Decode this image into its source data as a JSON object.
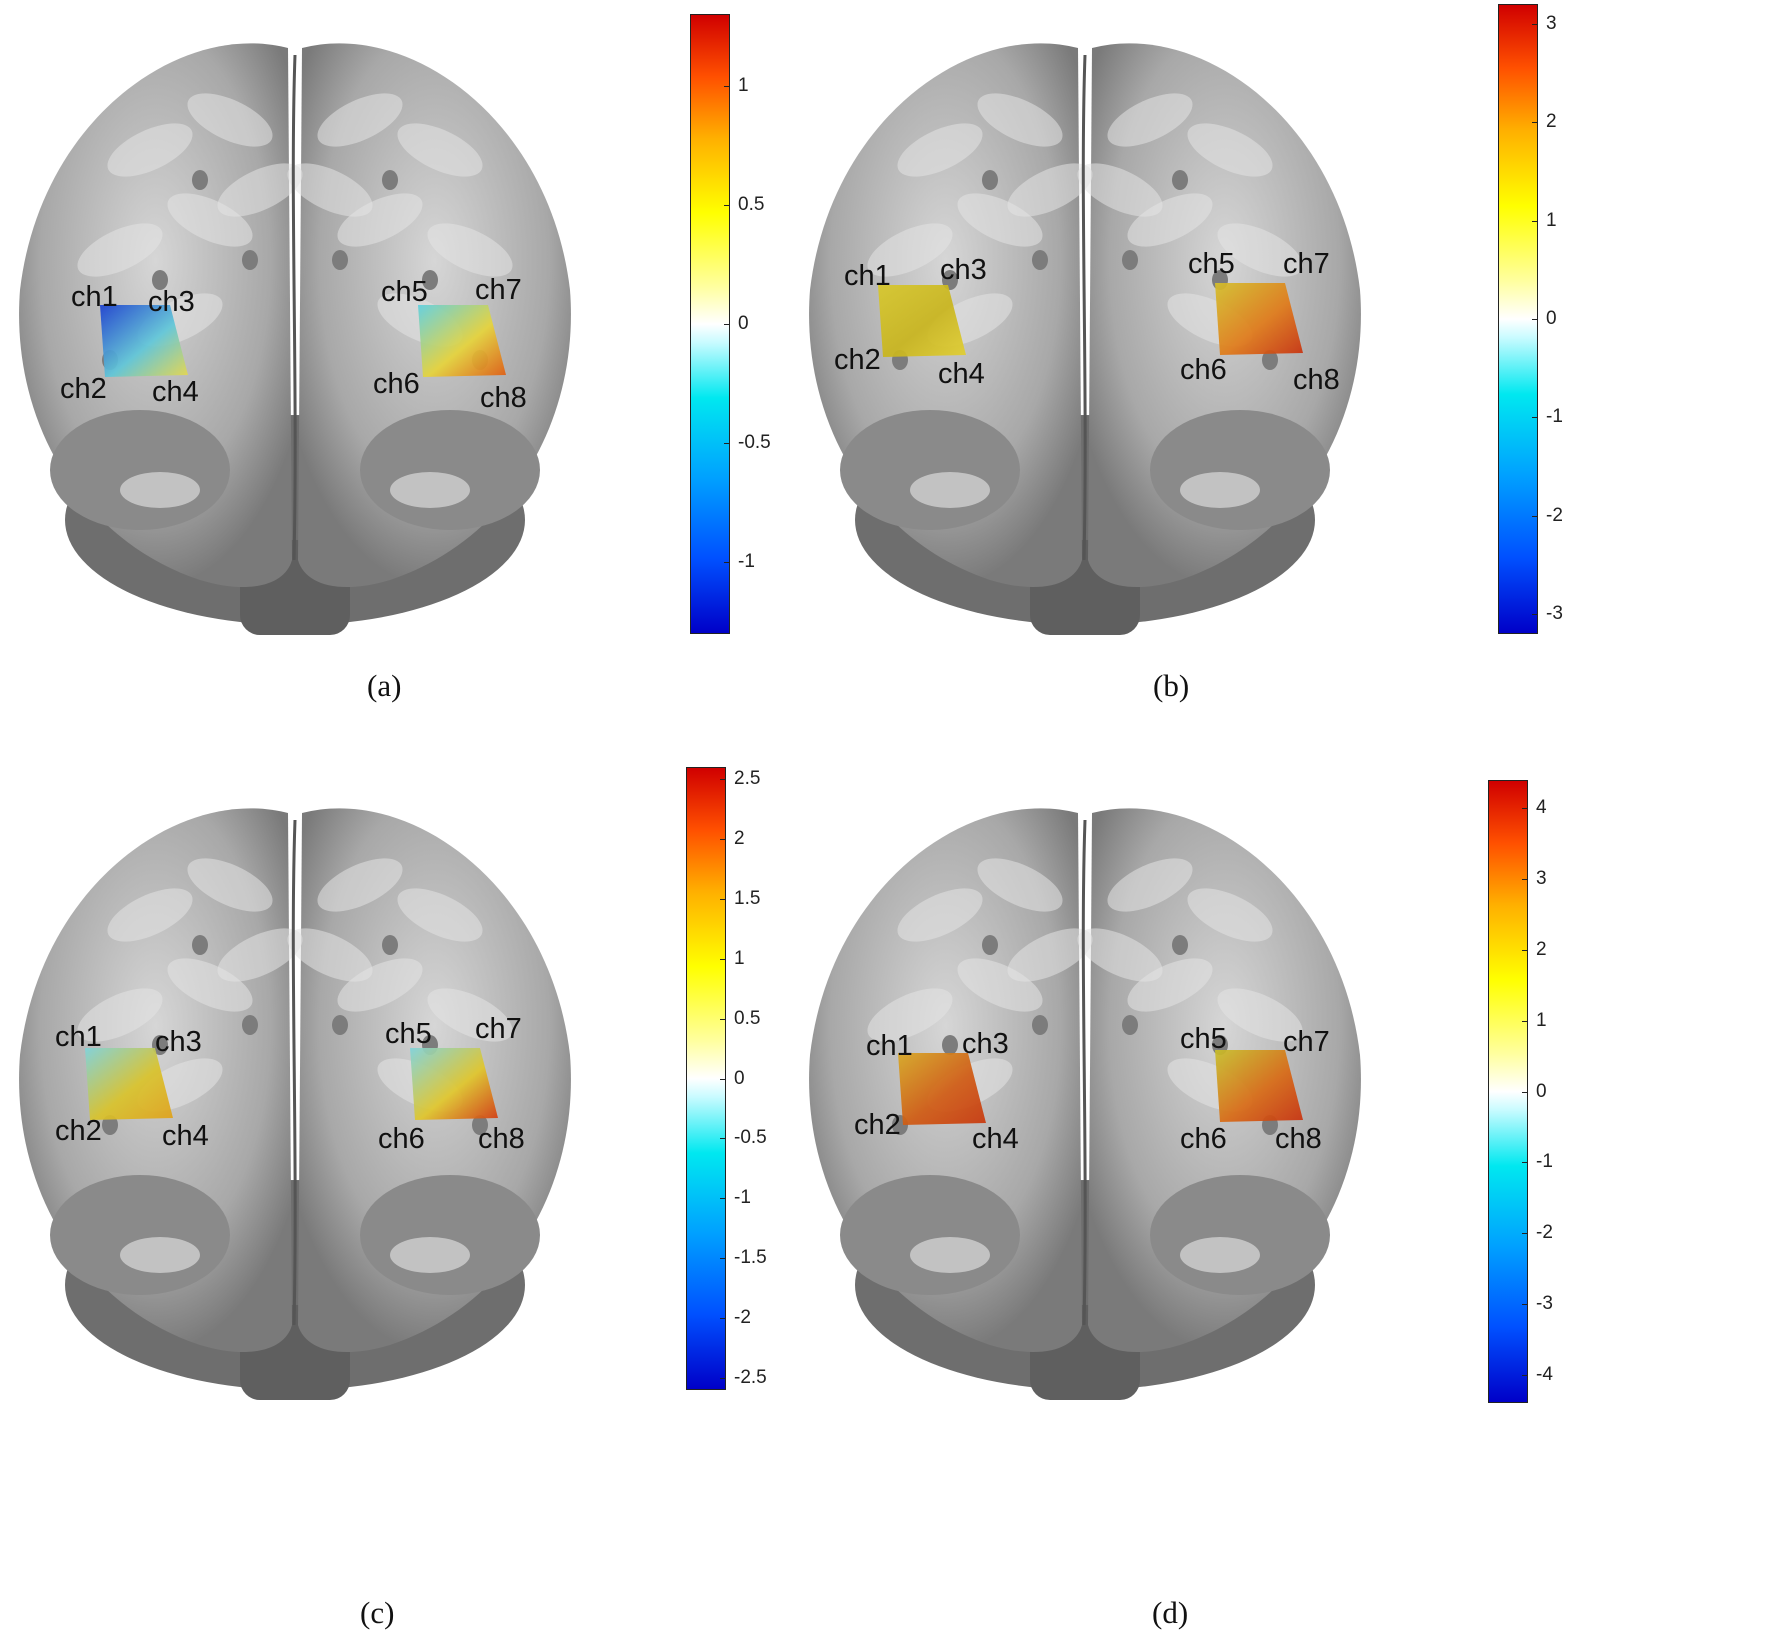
{
  "panels": [
    {
      "caption": "(a)",
      "channels": [
        "ch1",
        "ch2",
        "ch3",
        "ch4",
        "ch5",
        "ch6",
        "ch7",
        "ch8"
      ],
      "colorbar": {
        "min": -1.3,
        "max": 1.3,
        "ticks": [
          "1",
          "0.5",
          "0",
          "-0.5",
          "-1"
        ],
        "tick_values": [
          1,
          0.5,
          0,
          -0.5,
          -1
        ]
      },
      "patch_colors": {
        "left": [
          "#1a3fd0",
          "#5fc6d8",
          "#e8d84a"
        ],
        "right": [
          "#5ed0e0",
          "#e6d43a",
          "#e05a10"
        ]
      }
    },
    {
      "caption": "(b)",
      "channels": [
        "ch1",
        "ch2",
        "ch3",
        "ch4",
        "ch5",
        "ch6",
        "ch7",
        "ch8"
      ],
      "colorbar": {
        "min": -3.2,
        "max": 3.2,
        "ticks": [
          "3",
          "2",
          "1",
          "0",
          "-1",
          "-2",
          "-3"
        ],
        "tick_values": [
          3,
          2,
          1,
          0,
          -1,
          -2,
          -3
        ]
      },
      "patch_colors": {
        "left": [
          "#d8c82a",
          "#c9b51c",
          "#e2cf30"
        ],
        "right": [
          "#d4c02a",
          "#e07a18",
          "#c8300e"
        ]
      }
    },
    {
      "caption": "(c)",
      "channels": [
        "ch1",
        "ch2",
        "ch3",
        "ch4",
        "ch5",
        "ch6",
        "ch7",
        "ch8"
      ],
      "colorbar": {
        "min": -2.6,
        "max": 2.6,
        "ticks": [
          "2.5",
          "2",
          "1.5",
          "1",
          "0.5",
          "0",
          "-0.5",
          "-1",
          "-1.5",
          "-2",
          "-2.5"
        ],
        "tick_values": [
          2.5,
          2,
          1.5,
          1,
          0.5,
          0,
          -0.5,
          -1,
          -1.5,
          -2,
          -2.5
        ]
      },
      "patch_colors": {
        "left": [
          "#7fd4dc",
          "#d9c32a",
          "#e0a018"
        ],
        "right": [
          "#7fd4dc",
          "#e0c62a",
          "#d4380e"
        ]
      }
    },
    {
      "caption": "(d)",
      "channels": [
        "ch1",
        "ch2",
        "ch3",
        "ch4",
        "ch5",
        "ch6",
        "ch7",
        "ch8"
      ],
      "colorbar": {
        "min": -4.4,
        "max": 4.4,
        "ticks": [
          "4",
          "3",
          "2",
          "1",
          "0",
          "-1",
          "-2",
          "-3",
          "-4"
        ],
        "tick_values": [
          4,
          3,
          2,
          1,
          0,
          -1,
          -2,
          -3,
          -4
        ]
      },
      "patch_colors": {
        "left": [
          "#d8a822",
          "#d05a12",
          "#c8360c"
        ],
        "right": [
          "#c8c02a",
          "#d86a14",
          "#c8300e"
        ]
      }
    }
  ]
}
